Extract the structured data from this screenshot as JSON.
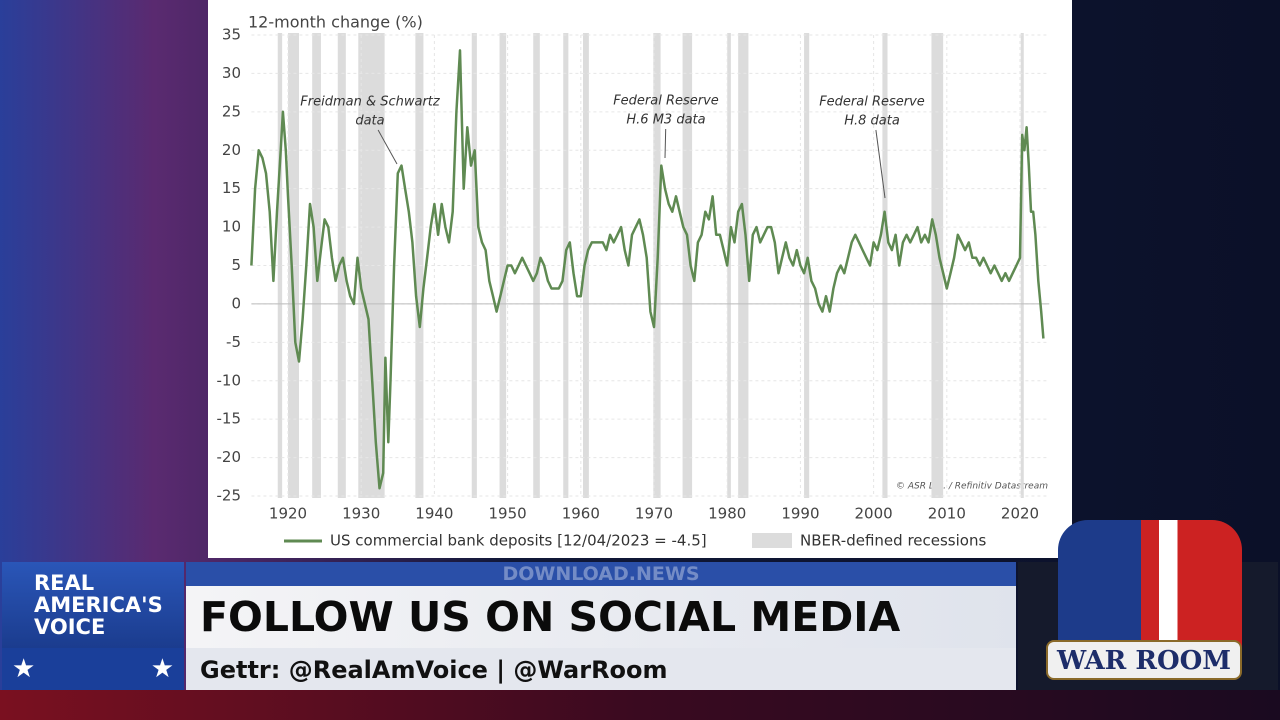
{
  "chart_data": {
    "type": "line",
    "y_axis_label": "12-month change (%)",
    "annotations": [
      [
        "Freidman & Schwartz",
        "data"
      ],
      [
        "Federal Reserve",
        "H.6 M3 data"
      ],
      [
        "Federal Reserve",
        "H.8 data"
      ]
    ],
    "source": "© ASR Ltd. / Refinitiv Datastream",
    "recession_label": "NBER-defined recessions",
    "recession_color": "#dcdcdc",
    "recessions": [
      [
        1918.6,
        1919.2
      ],
      [
        1920.0,
        1921.5
      ],
      [
        1923.3,
        1924.5
      ],
      [
        1926.8,
        1927.9
      ],
      [
        1929.6,
        1933.2
      ],
      [
        1937.4,
        1938.5
      ],
      [
        1945.1,
        1945.8
      ],
      [
        1948.9,
        1949.8
      ],
      [
        1953.5,
        1954.4
      ],
      [
        1957.6,
        1958.3
      ],
      [
        1960.3,
        1961.1
      ],
      [
        1969.9,
        1970.9
      ],
      [
        1973.9,
        1975.2
      ],
      [
        1980.0,
        1980.5
      ],
      [
        1981.5,
        1982.9
      ],
      [
        1990.5,
        1991.2
      ],
      [
        2001.2,
        2001.9
      ],
      [
        2007.9,
        2009.5
      ],
      [
        2020.1,
        2020.3
      ]
    ],
    "xlim": [
      1915,
      2024
    ],
    "ylim": [
      -25,
      35
    ],
    "xticks": [
      1920,
      1930,
      1940,
      1950,
      1960,
      1970,
      1980,
      1990,
      2000,
      2010,
      2020
    ],
    "yticks": [
      -25,
      -20,
      -15,
      -10,
      -5,
      0,
      5,
      10,
      15,
      20,
      25,
      30,
      35
    ],
    "grid": true,
    "x": [
      1915.0,
      1915.5,
      1916,
      1916.5,
      1917,
      1917.5,
      1918,
      1918.5,
      1919,
      1919.3,
      1919.7,
      1920,
      1920.5,
      1921,
      1921.5,
      1922,
      1922.5,
      1923,
      1923.5,
      1924,
      1924.5,
      1925,
      1925.5,
      1926,
      1926.5,
      1927,
      1927.5,
      1928,
      1928.5,
      1929,
      1929.5,
      1930,
      1930.5,
      1931,
      1931.5,
      1932,
      1932.5,
      1933,
      1933.3,
      1933.7,
      1934,
      1934.5,
      1935,
      1935.5,
      1936,
      1936.5,
      1937,
      1937.5,
      1938,
      1938.5,
      1939,
      1939.5,
      1940,
      1940.5,
      1941,
      1941.5,
      1942,
      1942.5,
      1943,
      1943.5,
      1944,
      1944.5,
      1945,
      1945.5,
      1946,
      1946.5,
      1947,
      1947.5,
      1948,
      1948.5,
      1949,
      1949.5,
      1950,
      1950.5,
      1951,
      1951.5,
      1952,
      1952.5,
      1953,
      1953.5,
      1954,
      1954.5,
      1955,
      1955.5,
      1956,
      1956.5,
      1957,
      1957.5,
      1958,
      1958.5,
      1959,
      1959.5,
      1960,
      1960.5,
      1961,
      1961.5,
      1962,
      1962.5,
      1963,
      1963.5,
      1964,
      1964.5,
      1965,
      1965.5,
      1966,
      1966.5,
      1967,
      1967.5,
      1968,
      1968.5,
      1969,
      1969.5,
      1970,
      1970.5,
      1971,
      1971.5,
      1972,
      1972.5,
      1973,
      1973.5,
      1974,
      1974.5,
      1975,
      1975.5,
      1976,
      1976.5,
      1977,
      1977.5,
      1978,
      1978.5,
      1979,
      1979.5,
      1980,
      1980.5,
      1981,
      1981.5,
      1982,
      1982.5,
      1983,
      1983.5,
      1984,
      1984.5,
      1985,
      1985.5,
      1986,
      1986.5,
      1987,
      1987.5,
      1988,
      1988.5,
      1989,
      1989.5,
      1990,
      1990.5,
      1991,
      1991.5,
      1992,
      1992.5,
      1993,
      1993.5,
      1994,
      1994.5,
      1995,
      1995.5,
      1996,
      1996.5,
      1997,
      1997.5,
      1998,
      1998.5,
      1999,
      1999.5,
      2000,
      2000.5,
      2001,
      2001.5,
      2002,
      2002.5,
      2003,
      2003.5,
      2004,
      2004.5,
      2005,
      2005.5,
      2006,
      2006.5,
      2007,
      2007.5,
      2008,
      2008.5,
      2009,
      2009.5,
      2010,
      2010.5,
      2011,
      2011.5,
      2012,
      2012.5,
      2013,
      2013.5,
      2014,
      2014.5,
      2015,
      2015.5,
      2016,
      2016.5,
      2017,
      2017.5,
      2018,
      2018.5,
      2019,
      2019.5,
      2020,
      2020.3,
      2020.6,
      2020.9,
      2021.2,
      2021.5,
      2021.8,
      2022.1,
      2022.5,
      2022.9,
      2023.2
    ],
    "series": [
      {
        "name": "US commercial bank deposits [12/04/2023 = -4.5]",
        "color": "#5f8a52",
        "values": [
          5,
          15,
          20,
          19,
          17,
          12,
          3,
          12,
          20,
          25,
          20,
          14,
          5,
          -5,
          -7.5,
          -2,
          5,
          13,
          10,
          3,
          7,
          11,
          10,
          6,
          3,
          5,
          6,
          3,
          1,
          0,
          6,
          2,
          0,
          -2,
          -10,
          -18,
          -24,
          -22,
          -7,
          -18,
          -10,
          5,
          17,
          18,
          15,
          12,
          8,
          1,
          -3,
          2,
          6,
          10,
          13,
          9,
          13,
          10,
          8,
          12,
          25,
          33,
          15,
          23,
          18,
          20,
          10,
          8,
          7,
          3,
          1,
          -1,
          1,
          3,
          5,
          5,
          4,
          5,
          6,
          5,
          4,
          3,
          4,
          6,
          5,
          3,
          2,
          2,
          2,
          3,
          7,
          8,
          4,
          1,
          1,
          5,
          7,
          8,
          8,
          8,
          8,
          7,
          9,
          8,
          9,
          10,
          7,
          5,
          9,
          10,
          11,
          9,
          6,
          -1,
          -3,
          6,
          18,
          15,
          13,
          12,
          14,
          12,
          10,
          9,
          5,
          3,
          8,
          9,
          12,
          11,
          14,
          9,
          9,
          7,
          5,
          10,
          8,
          12,
          13,
          9,
          3,
          9,
          10,
          8,
          9,
          10,
          10,
          8,
          4,
          6,
          8,
          6,
          5,
          7,
          5,
          4,
          6,
          3,
          2,
          0,
          -1,
          1,
          -1,
          2,
          4,
          5,
          4,
          6,
          8,
          9,
          8,
          7,
          6,
          5,
          8,
          7,
          9,
          12,
          8,
          7,
          9,
          5,
          8,
          9,
          8,
          9,
          10,
          8,
          9,
          8,
          11,
          9,
          6,
          4,
          2,
          4,
          6,
          9,
          8,
          7,
          8,
          6,
          6,
          5,
          6,
          5,
          4,
          5,
          4,
          3,
          4,
          3,
          4,
          5,
          6,
          22,
          20,
          23,
          18,
          12,
          12,
          9,
          3,
          -1,
          -4.5
        ]
      }
    ]
  },
  "overlay": {
    "network": [
      "REAL",
      "AMERICA'S",
      "VOICE"
    ],
    "watermark": "DOWNLOAD.NEWS",
    "headline": "FOLLOW US ON SOCIAL MEDIA",
    "subline": "Gettr: @RealAmVoice | @WarRoom",
    "show": "WAR ROOM"
  }
}
